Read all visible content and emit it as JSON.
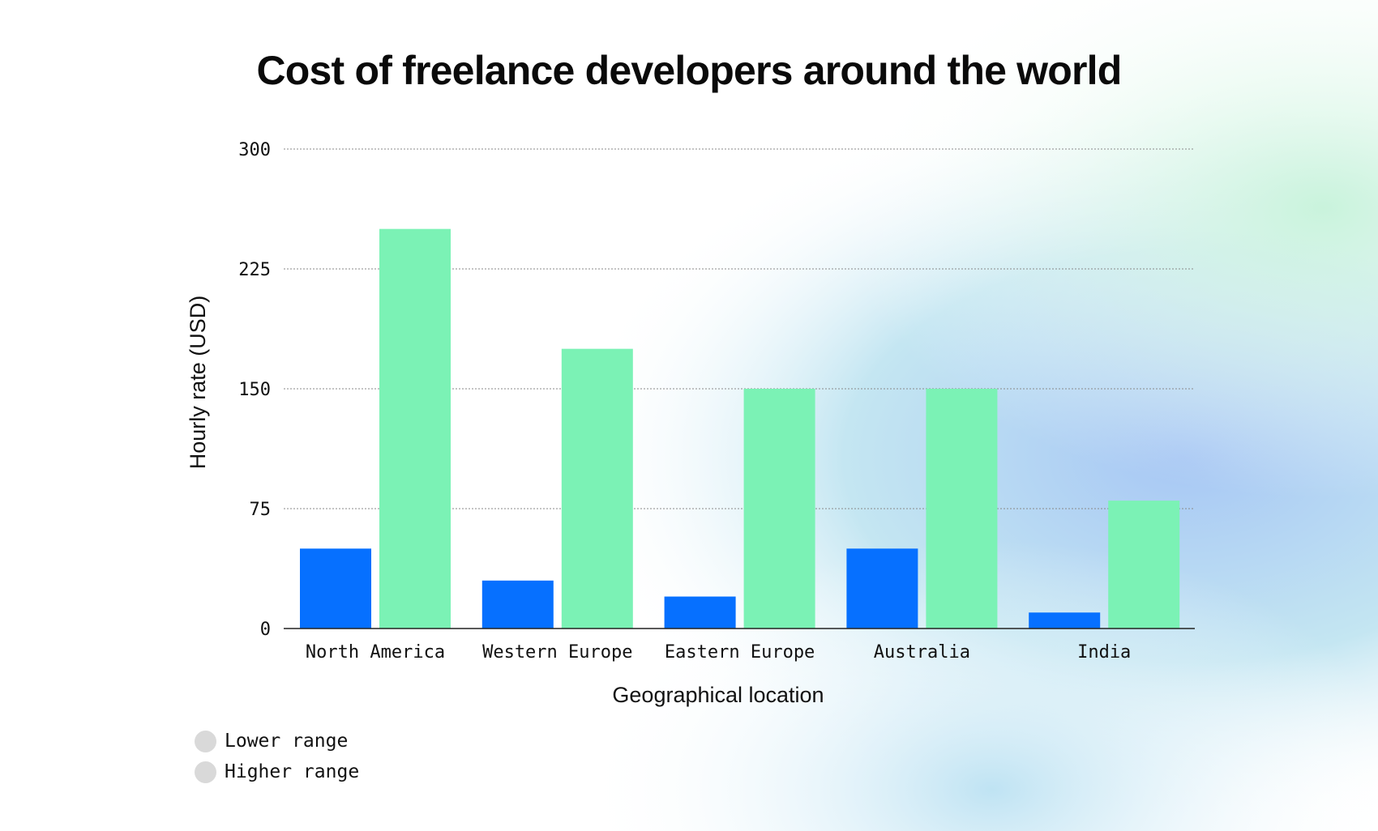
{
  "colors": {
    "lower": "#0670ff",
    "higher": "#7bf2b5",
    "grid": "#8a8a8a",
    "axis": "#222222"
  },
  "chart_data": {
    "type": "bar",
    "title": "Cost of freelance developers around the world",
    "xlabel": "Geographical location",
    "ylabel": "Hourly rate (USD)",
    "categories": [
      "North America",
      "Western Europe",
      "Eastern Europe",
      "Australia",
      "India"
    ],
    "series": [
      {
        "name": "Lower range",
        "values": [
          50,
          30,
          20,
          50,
          10
        ]
      },
      {
        "name": "Higher range",
        "values": [
          250,
          175,
          150,
          150,
          80
        ]
      }
    ],
    "ylim": [
      0,
      300
    ],
    "yticks": [
      "300",
      "225",
      "150",
      "75",
      "0"
    ],
    "grid": true,
    "legend_position": "bottom-left"
  }
}
